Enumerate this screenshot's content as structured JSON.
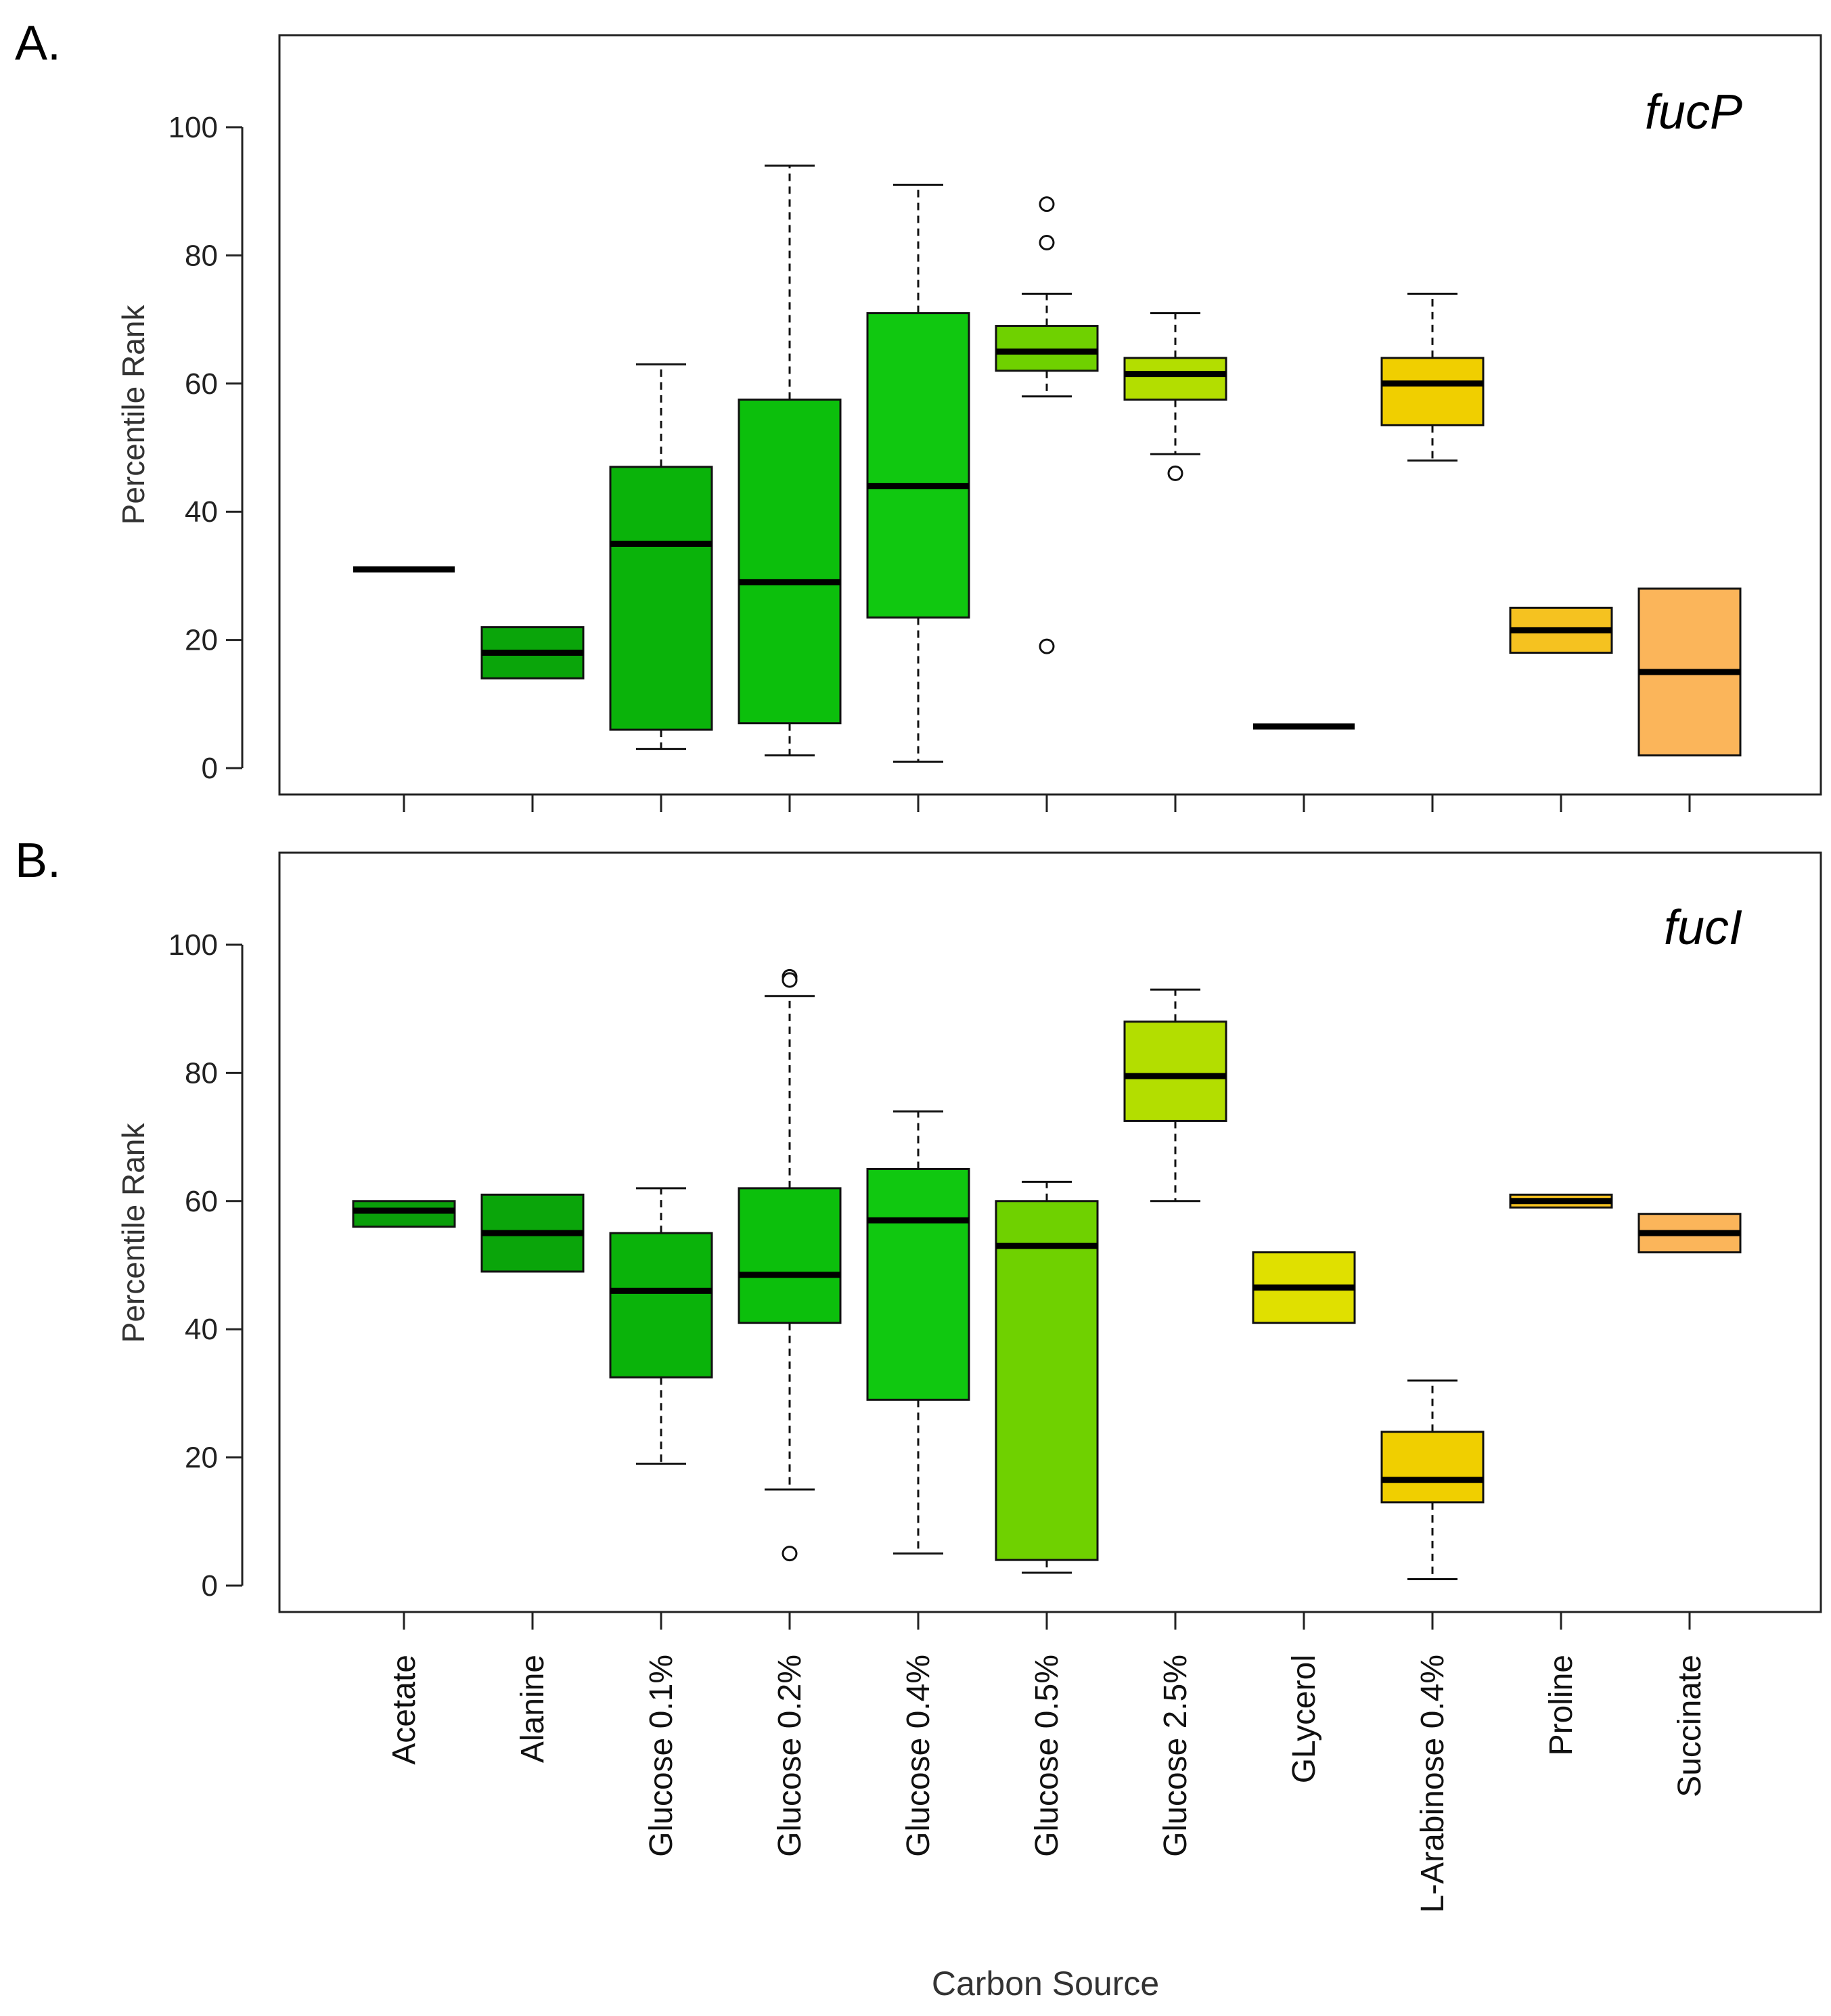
{
  "x_axis_title": "Carbon Source",
  "categories": [
    "Acetate",
    "Alanine",
    "Glucose 0.1%",
    "Glucose 0.2%",
    "Glucose 0.4%",
    "Glucose 0.5%",
    "Glucose 2.5%",
    "GLycerol",
    "L-Arabinose 0.4%",
    "Proline",
    "Succinate"
  ],
  "chart_data": [
    {
      "type": "boxplot",
      "panel": "A.",
      "gene": "fucP",
      "ylabel": "Percentile Rank",
      "xlabel": "Carbon Source",
      "ylim": [
        -4,
        114
      ],
      "yticks": [
        "0",
        "20",
        "40",
        "60",
        "80",
        "100"
      ],
      "boxes": [
        {
          "category": "Acetate",
          "min": 31,
          "q1": 31,
          "median": 31,
          "q3": 31,
          "max": 31,
          "outliers": [],
          "color": "#0A9E0A"
        },
        {
          "category": "Alanine",
          "min": 14,
          "q1": 14,
          "median": 18,
          "q3": 22,
          "max": 22,
          "outliers": [],
          "color": "#0AA50A"
        },
        {
          "category": "Glucose 0.1%",
          "min": 3,
          "q1": 6,
          "median": 35,
          "q3": 47,
          "max": 63,
          "outliers": [],
          "color": "#0AB30A"
        },
        {
          "category": "Glucose 0.2%",
          "min": 2,
          "q1": 7,
          "median": 29,
          "q3": 57.5,
          "max": 94,
          "outliers": [],
          "color": "#0CBF0C"
        },
        {
          "category": "Glucose 0.4%",
          "min": 1,
          "q1": 23.5,
          "median": 44,
          "q3": 71,
          "max": 91,
          "outliers": [],
          "color": "#10C810"
        },
        {
          "category": "Glucose 0.5%",
          "min": 58,
          "q1": 62,
          "median": 65,
          "q3": 69,
          "max": 74,
          "outliers": [
            88,
            82,
            19
          ],
          "color": "#6FD100"
        },
        {
          "category": "Glucose 2.5%",
          "min": 49,
          "q1": 57.5,
          "median": 61.5,
          "q3": 64,
          "max": 71,
          "outliers": [
            46
          ],
          "color": "#B3DE00"
        },
        {
          "category": "GLycerol",
          "min": 6.5,
          "q1": 6.5,
          "median": 6.5,
          "q3": 6.5,
          "max": 6.5,
          "outliers": [],
          "color": "#E0E000"
        },
        {
          "category": "L-Arabinose 0.4%",
          "min": 48,
          "q1": 53.5,
          "median": 60,
          "q3": 64,
          "max": 74,
          "outliers": [],
          "color": "#F0CF00"
        },
        {
          "category": "Proline",
          "min": 18,
          "q1": 18,
          "median": 21.5,
          "q3": 25,
          "max": 25,
          "outliers": [],
          "color": "#F5C220"
        },
        {
          "category": "Succinate",
          "min": 2,
          "q1": 2,
          "median": 15,
          "q3": 28,
          "max": 28,
          "outliers": [],
          "color": "#FBB55A"
        }
      ]
    },
    {
      "type": "boxplot",
      "panel": "B.",
      "gene": "fucI",
      "ylabel": "Percentile Rank",
      "xlabel": "Carbon Source",
      "ylim": [
        -4,
        114
      ],
      "yticks": [
        "0",
        "20",
        "40",
        "60",
        "80",
        "100"
      ],
      "boxes": [
        {
          "category": "Acetate",
          "min": 56,
          "q1": 56,
          "median": 58.5,
          "q3": 60,
          "max": 60,
          "outliers": [],
          "color": "#0A9E0A"
        },
        {
          "category": "Alanine",
          "min": 49,
          "q1": 49,
          "median": 55,
          "q3": 61,
          "max": 61,
          "outliers": [],
          "color": "#0AA50A"
        },
        {
          "category": "Glucose 0.1%",
          "min": 19,
          "q1": 32.5,
          "median": 46,
          "q3": 55,
          "max": 62,
          "outliers": [],
          "color": "#0AB30A"
        },
        {
          "category": "Glucose 0.2%",
          "min": 15,
          "q1": 41,
          "median": 48.5,
          "q3": 62,
          "max": 92,
          "outliers": [
            95,
            94.5,
            5
          ],
          "color": "#0CBF0C"
        },
        {
          "category": "Glucose 0.4%",
          "min": 5,
          "q1": 29,
          "median": 57,
          "q3": 65,
          "max": 74,
          "outliers": [],
          "color": "#10C810"
        },
        {
          "category": "Glucose 0.5%",
          "min": 2,
          "q1": 4,
          "median": 53,
          "q3": 60,
          "max": 63,
          "outliers": [],
          "color": "#6FD100"
        },
        {
          "category": "Glucose 2.5%",
          "min": 60,
          "q1": 72.5,
          "median": 79.5,
          "q3": 88,
          "max": 93,
          "outliers": [],
          "color": "#B3DE00"
        },
        {
          "category": "GLycerol",
          "min": 41,
          "q1": 41,
          "median": 46.5,
          "q3": 52,
          "max": 52,
          "outliers": [],
          "color": "#E0E000"
        },
        {
          "category": "L-Arabinose 0.4%",
          "min": 1,
          "q1": 13,
          "median": 16.5,
          "q3": 24,
          "max": 32,
          "outliers": [],
          "color": "#F0CF00"
        },
        {
          "category": "Proline",
          "min": 59,
          "q1": 59,
          "median": 60,
          "q3": 61,
          "max": 61,
          "outliers": [],
          "color": "#F5C220"
        },
        {
          "category": "Succinate",
          "min": 52,
          "q1": 52,
          "median": 55,
          "q3": 58,
          "max": 58,
          "outliers": [],
          "color": "#FBB55A"
        }
      ]
    }
  ]
}
